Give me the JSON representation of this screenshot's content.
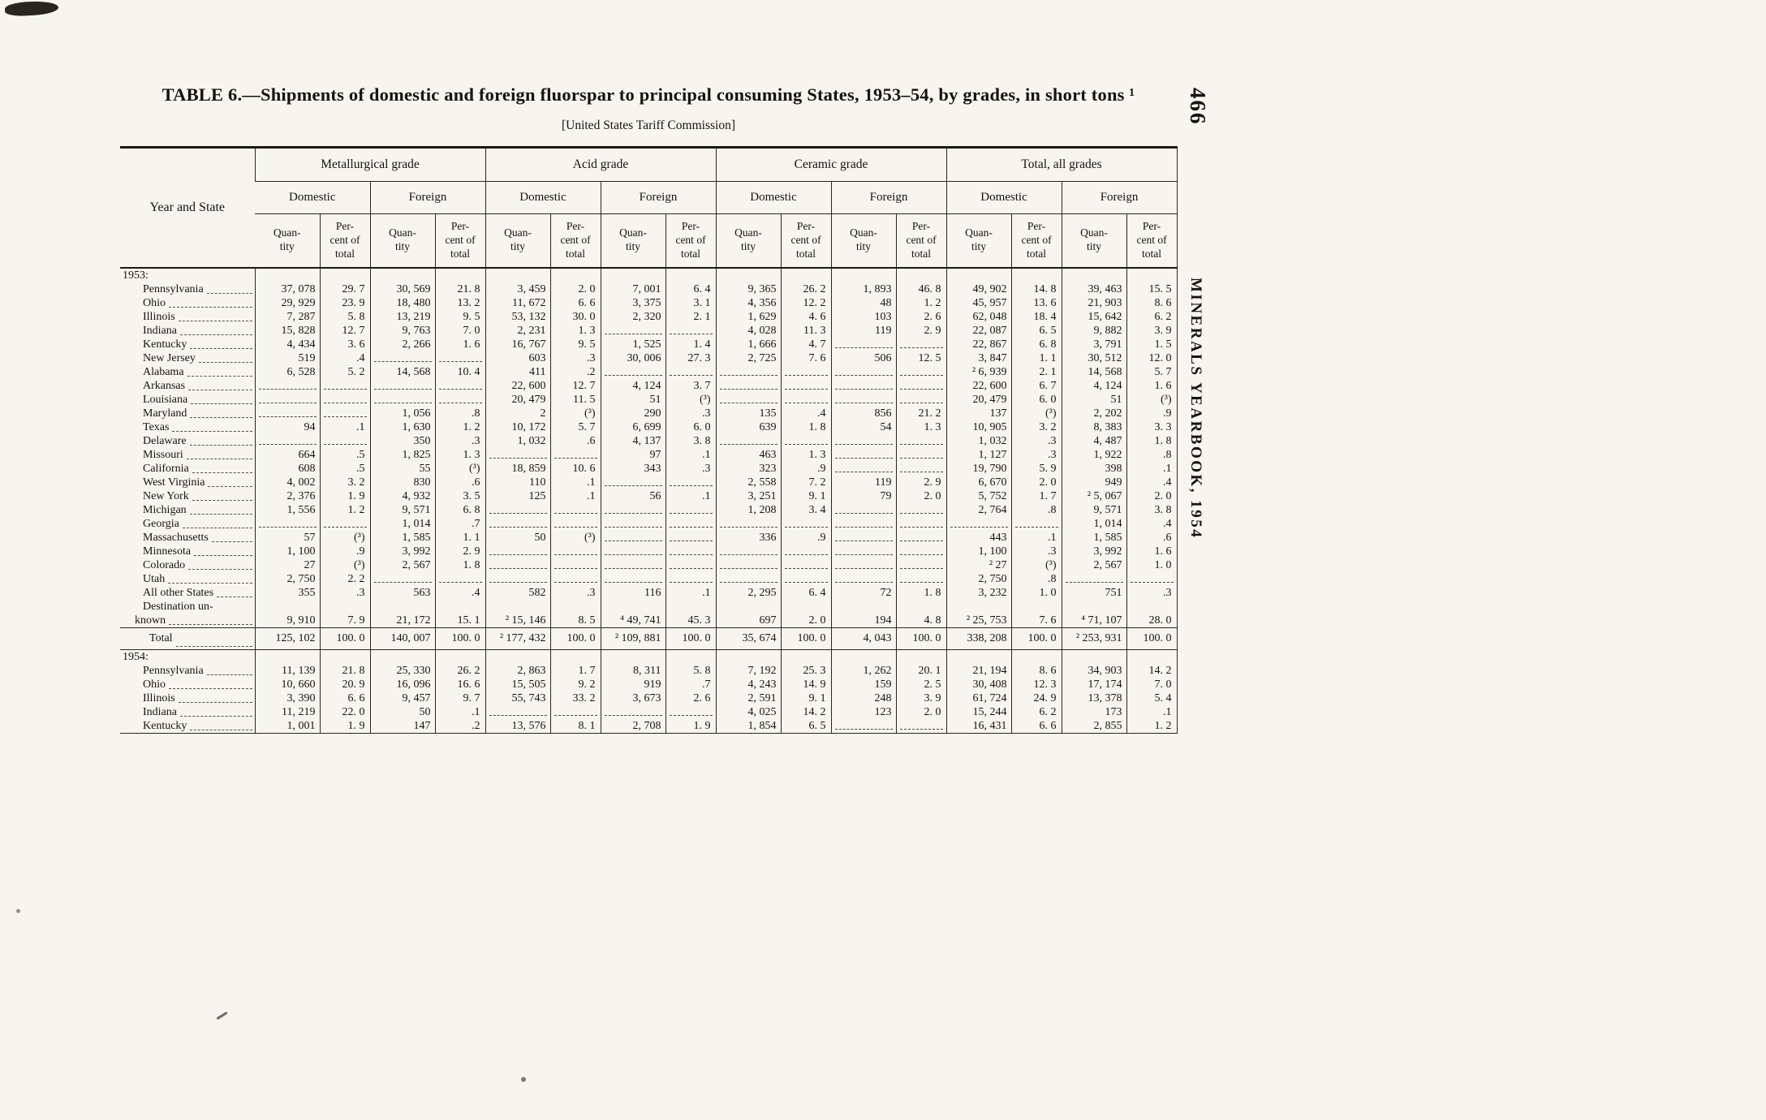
{
  "page": {
    "page_number": "466",
    "running_title": "MINERALS YEARBOOK, 1954"
  },
  "table": {
    "title": "TABLE 6.—Shipments of domestic and foreign fluorspar to principal consuming States, 1953–54, by grades, in short tons ¹",
    "subtitle": "[United States Tariff Commission]",
    "stub_header": "Year and State",
    "grade_groups": [
      "Metallurgical grade",
      "Acid grade",
      "Ceramic grade",
      "Total, all grades"
    ],
    "origin_headers": [
      "Domestic",
      "Foreign"
    ],
    "measure_headers": [
      "Quan-\ntity",
      "Per-\ncent of\ntotal"
    ],
    "sections": [
      {
        "year_label": "1953:",
        "rows": [
          {
            "label": "Pennsylvania",
            "values": [
              "37, 078",
              "29. 7",
              "30, 569",
              "21. 8",
              "3, 459",
              "2. 0",
              "7, 001",
              "6. 4",
              "9, 365",
              "26. 2",
              "1, 893",
              "46. 8",
              "49, 902",
              "14. 8",
              "39, 463",
              "15. 5"
            ]
          },
          {
            "label": "Ohio",
            "values": [
              "29, 929",
              "23. 9",
              "18, 480",
              "13. 2",
              "11, 672",
              "6. 6",
              "3, 375",
              "3. 1",
              "4, 356",
              "12. 2",
              "48",
              "1. 2",
              "45, 957",
              "13. 6",
              "21, 903",
              "8. 6"
            ]
          },
          {
            "label": "Illinois",
            "values": [
              "7, 287",
              "5. 8",
              "13, 219",
              "9. 5",
              "53, 132",
              "30. 0",
              "2, 320",
              "2. 1",
              "1, 629",
              "4. 6",
              "103",
              "2. 6",
              "62, 048",
              "18. 4",
              "15, 642",
              "6. 2"
            ]
          },
          {
            "label": "Indiana",
            "values": [
              "15, 828",
              "12. 7",
              "9, 763",
              "7. 0",
              "2, 231",
              "1. 3",
              "",
              "",
              "4, 028",
              "11. 3",
              "119",
              "2. 9",
              "22, 087",
              "6. 5",
              "9, 882",
              "3. 9"
            ]
          },
          {
            "label": "Kentucky",
            "values": [
              "4, 434",
              "3. 6",
              "2, 266",
              "1. 6",
              "16, 767",
              "9. 5",
              "1, 525",
              "1. 4",
              "1, 666",
              "4. 7",
              "",
              "",
              "22, 867",
              "6. 8",
              "3, 791",
              "1. 5"
            ]
          },
          {
            "label": "New Jersey",
            "values": [
              "519",
              ".4",
              "",
              "",
              "603",
              ".3",
              "30, 006",
              "27. 3",
              "2, 725",
              "7. 6",
              "506",
              "12. 5",
              "3, 847",
              "1. 1",
              "30, 512",
              "12. 0"
            ]
          },
          {
            "label": "Alabama",
            "values": [
              "6, 528",
              "5. 2",
              "14, 568",
              "10. 4",
              "411",
              ".2",
              "",
              "",
              "",
              "",
              "",
              "",
              "² 6, 939",
              "2. 1",
              "14, 568",
              "5. 7"
            ]
          },
          {
            "label": "Arkansas",
            "values": [
              "",
              "",
              "",
              "",
              "22, 600",
              "12. 7",
              "4, 124",
              "3. 7",
              "",
              "",
              "",
              "",
              "22, 600",
              "6. 7",
              "4, 124",
              "1. 6"
            ]
          },
          {
            "label": "Louisiana",
            "values": [
              "",
              "",
              "",
              "",
              "20, 479",
              "11. 5",
              "51",
              "(³)",
              "",
              "",
              "",
              "",
              "20, 479",
              "6. 0",
              "51",
              "(³)"
            ]
          },
          {
            "label": "Maryland",
            "values": [
              "",
              "",
              "1, 056",
              ".8",
              "2",
              "(³)",
              "290",
              ".3",
              "135",
              ".4",
              "856",
              "21. 2",
              "137",
              "(³)",
              "2, 202",
              ".9"
            ]
          },
          {
            "label": "Texas",
            "values": [
              "94",
              ".1",
              "1, 630",
              "1. 2",
              "10, 172",
              "5. 7",
              "6, 699",
              "6. 0",
              "639",
              "1. 8",
              "54",
              "1. 3",
              "10, 905",
              "3. 2",
              "8, 383",
              "3. 3"
            ]
          },
          {
            "label": "Delaware",
            "values": [
              "",
              "",
              "350",
              ".3",
              "1, 032",
              ".6",
              "4, 137",
              "3. 8",
              "",
              "",
              "",
              "",
              "1, 032",
              ".3",
              "4, 487",
              "1. 8"
            ]
          },
          {
            "label": "Missouri",
            "values": [
              "664",
              ".5",
              "1, 825",
              "1. 3",
              "",
              "",
              "97",
              ".1",
              "463",
              "1. 3",
              "",
              "",
              "1, 127",
              ".3",
              "1, 922",
              ".8"
            ]
          },
          {
            "label": "California",
            "values": [
              "608",
              ".5",
              "55",
              "(³)",
              "18, 859",
              "10. 6",
              "343",
              ".3",
              "323",
              ".9",
              "",
              "",
              "19, 790",
              "5. 9",
              "398",
              ".1"
            ]
          },
          {
            "label": "West Virginia",
            "values": [
              "4, 002",
              "3. 2",
              "830",
              ".6",
              "110",
              ".1",
              "",
              "",
              "2, 558",
              "7. 2",
              "119",
              "2. 9",
              "6, 670",
              "2. 0",
              "949",
              ".4"
            ]
          },
          {
            "label": "New York",
            "values": [
              "2, 376",
              "1. 9",
              "4, 932",
              "3. 5",
              "125",
              ".1",
              "56",
              ".1",
              "3, 251",
              "9. 1",
              "79",
              "2. 0",
              "5, 752",
              "1. 7",
              "² 5, 067",
              "2. 0"
            ]
          },
          {
            "label": "Michigan",
            "values": [
              "1, 556",
              "1. 2",
              "9, 571",
              "6. 8",
              "",
              "",
              "",
              "",
              "1, 208",
              "3. 4",
              "",
              "",
              "2, 764",
              ".8",
              "9, 571",
              "3. 8"
            ]
          },
          {
            "label": "Georgia",
            "values": [
              "",
              "",
              "1, 014",
              ".7",
              "",
              "",
              "",
              "",
              "",
              "",
              "",
              "",
              "",
              "",
              "1, 014",
              ".4"
            ]
          },
          {
            "label": "Massachusetts",
            "values": [
              "57",
              "(³)",
              "1, 585",
              "1. 1",
              "50",
              "(³)",
              "",
              "",
              "336",
              ".9",
              "",
              "",
              "443",
              ".1",
              "1, 585",
              ".6"
            ]
          },
          {
            "label": "Minnesota",
            "values": [
              "1, 100",
              ".9",
              "3, 992",
              "2. 9",
              "",
              "",
              "",
              "",
              "",
              "",
              "",
              "",
              "1, 100",
              ".3",
              "3, 992",
              "1. 6"
            ]
          },
          {
            "label": "Colorado",
            "values": [
              "27",
              "(³)",
              "2, 567",
              "1. 8",
              "",
              "",
              "",
              "",
              "",
              "",
              "",
              "",
              "² 27",
              "(³)",
              "2, 567",
              "1. 0"
            ]
          },
          {
            "label": "Utah",
            "values": [
              "2, 750",
              "2. 2",
              "",
              "",
              "",
              "",
              "",
              "",
              "",
              "",
              "",
              "",
              "2, 750",
              ".8",
              "",
              ""
            ]
          },
          {
            "label": "All other States",
            "values": [
              "355",
              ".3",
              "563",
              ".4",
              "582",
              ".3",
              "116",
              ".1",
              "2, 295",
              "6. 4",
              "72",
              "1. 8",
              "3, 232",
              "1. 0",
              "751",
              ".3"
            ]
          },
          {
            "label": "Destination un-",
            "label2": "known",
            "values": [
              "9, 910",
              "7. 9",
              "21, 172",
              "15. 1",
              "² 15, 146",
              "8. 5",
              "⁴ 49, 741",
              "45. 3",
              "697",
              "2. 0",
              "194",
              "4. 8",
              "² 25, 753",
              "7. 6",
              "⁴ 71, 107",
              "28. 0"
            ]
          }
        ],
        "total": {
          "label": "Total",
          "values": [
            "125, 102",
            "100. 0",
            "140, 007",
            "100. 0",
            "² 177, 432",
            "100. 0",
            "² 109, 881",
            "100. 0",
            "35, 674",
            "100. 0",
            "4, 043",
            "100. 0",
            "338, 208",
            "100. 0",
            "² 253, 931",
            "100. 0"
          ]
        }
      },
      {
        "year_label": "1954:",
        "rows": [
          {
            "label": "Pennsylvania",
            "values": [
              "11, 139",
              "21. 8",
              "25, 330",
              "26. 2",
              "2, 863",
              "1. 7",
              "8, 311",
              "5. 8",
              "7, 192",
              "25. 3",
              "1, 262",
              "20. 1",
              "21, 194",
              "8. 6",
              "34, 903",
              "14. 2"
            ]
          },
          {
            "label": "Ohio",
            "values": [
              "10, 660",
              "20. 9",
              "16, 096",
              "16. 6",
              "15, 505",
              "9. 2",
              "919",
              ".7",
              "4, 243",
              "14. 9",
              "159",
              "2. 5",
              "30, 408",
              "12. 3",
              "17, 174",
              "7. 0"
            ]
          },
          {
            "label": "Illinois",
            "values": [
              "3, 390",
              "6. 6",
              "9, 457",
              "9. 7",
              "55, 743",
              "33. 2",
              "3, 673",
              "2. 6",
              "2, 591",
              "9. 1",
              "248",
              "3. 9",
              "61, 724",
              "24. 9",
              "13, 378",
              "5. 4"
            ]
          },
          {
            "label": "Indiana",
            "values": [
              "11, 219",
              "22. 0",
              "50",
              ".1",
              "",
              "",
              "",
              "",
              "4, 025",
              "14. 2",
              "123",
              "2. 0",
              "15, 244",
              "6. 2",
              "173",
              ".1"
            ]
          },
          {
            "label": "Kentucky",
            "values": [
              "1, 001",
              "1. 9",
              "147",
              ".2",
              "13, 576",
              "8. 1",
              "2, 708",
              "1. 9",
              "1, 854",
              "6. 5",
              "",
              "",
              "16, 431",
              "6. 6",
              "2, 855",
              "1. 2"
            ]
          }
        ],
        "total": null
      }
    ]
  }
}
